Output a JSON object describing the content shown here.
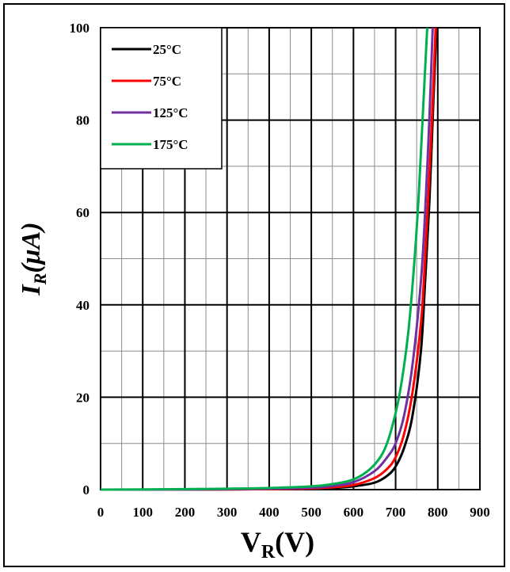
{
  "chart_data": {
    "type": "line",
    "xlabel_main": "V",
    "xlabel_sub": "R",
    "xlabel_unit": "(V)",
    "ylabel_main": "I",
    "ylabel_sub": "R",
    "ylabel_unit": "(μA)",
    "xlim": [
      0,
      900
    ],
    "ylim": [
      0,
      100
    ],
    "x_ticks": [
      "0",
      "100",
      "200",
      "300",
      "400",
      "500",
      "600",
      "700",
      "800",
      "900"
    ],
    "y_ticks": [
      "0",
      "20",
      "40",
      "60",
      "80",
      "100"
    ],
    "grid": true,
    "legend_position": "top-left",
    "series": [
      {
        "name": "25°C",
        "color": "#000000",
        "x": [
          0,
          100,
          200,
          300,
          400,
          500,
          550,
          600,
          650,
          680,
          700,
          720,
          740,
          760,
          770,
          780,
          790,
          797
        ],
        "y": [
          0,
          0,
          0,
          0.05,
          0.1,
          0.2,
          0.35,
          0.7,
          1.5,
          3,
          5,
          9,
          16,
          30,
          45,
          62,
          85,
          100
        ]
      },
      {
        "name": "75°C",
        "color": "#ff0000",
        "x": [
          0,
          100,
          200,
          300,
          400,
          500,
          550,
          600,
          650,
          680,
          700,
          720,
          740,
          760,
          770,
          780,
          790,
          795
        ],
        "y": [
          0,
          0,
          0,
          0.05,
          0.1,
          0.25,
          0.5,
          1,
          2.5,
          4.5,
          7,
          12,
          21,
          36,
          50,
          68,
          88,
          100
        ]
      },
      {
        "name": "125°C",
        "color": "#7030a0",
        "x": [
          0,
          100,
          200,
          300,
          400,
          500,
          550,
          600,
          650,
          680,
          700,
          720,
          740,
          760,
          770,
          780,
          788
        ],
        "y": [
          0,
          0,
          0,
          0.1,
          0.2,
          0.4,
          0.8,
          1.6,
          4,
          7,
          10,
          16,
          27,
          45,
          60,
          80,
          100
        ]
      },
      {
        "name": "175°C",
        "color": "#00b050",
        "x": [
          0,
          100,
          200,
          300,
          400,
          500,
          550,
          600,
          640,
          670,
          690,
          710,
          730,
          745,
          755,
          765,
          775
        ],
        "y": [
          0,
          0.05,
          0.1,
          0.2,
          0.35,
          0.7,
          1.2,
          2.2,
          4.5,
          8,
          13,
          21,
          34,
          50,
          64,
          82,
          100
        ]
      }
    ]
  }
}
